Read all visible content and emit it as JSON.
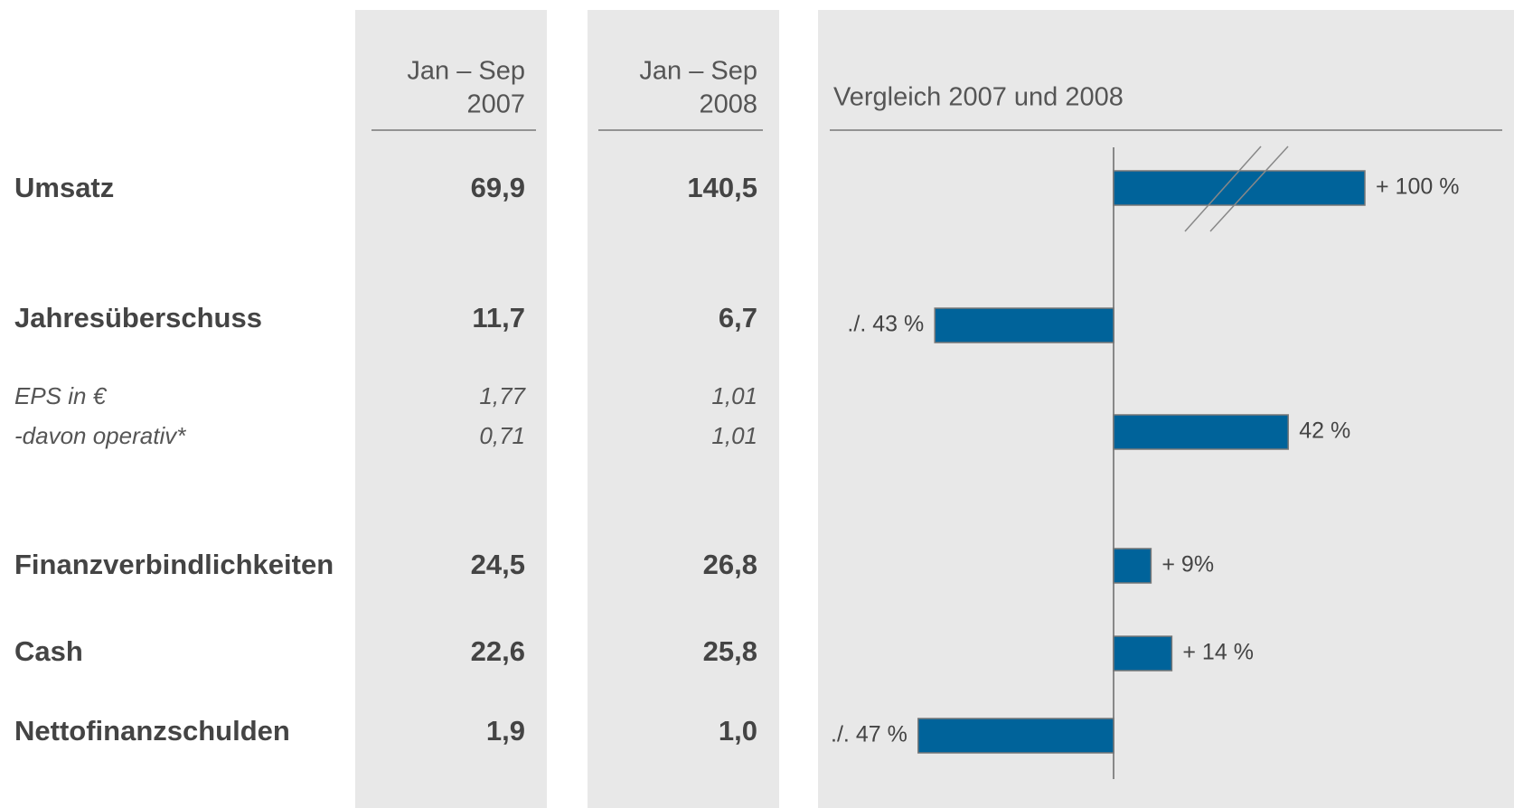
{
  "header": {
    "columns": [
      {
        "line1": "Jan – Sep",
        "line2": "2007"
      },
      {
        "line1": "Jan – Sep",
        "line2": "2008"
      }
    ],
    "chart_title": "Vergleich 2007 und 2008"
  },
  "rows": [
    {
      "label": "Umsatz",
      "v2007": "69,9",
      "v2008": "140,5",
      "emphasis": "bold"
    },
    {
      "label": "Jahresüberschuss",
      "v2007": "11,7",
      "v2008": "6,7",
      "emphasis": "bold"
    },
    {
      "label": "EPS in €",
      "v2007": "1,77",
      "v2008": "1,01",
      "emphasis": "italic"
    },
    {
      "label": "-davon operativ*",
      "v2007": "0,71",
      "v2008": "1,01",
      "emphasis": "italic"
    },
    {
      "label": "Finanzverbindlichkeiten",
      "v2007": "24,5",
      "v2008": "26,8",
      "emphasis": "bold"
    },
    {
      "label": "Cash",
      "v2007": "22,6",
      "v2008": "25,8",
      "emphasis": "bold"
    },
    {
      "label": "Nettofinanzschulden",
      "v2007": "1,9",
      "v2008": "1,0",
      "emphasis": "bold"
    }
  ],
  "bars": [
    {
      "value": 100,
      "label": "+ 100 %"
    },
    {
      "value": -43,
      "label": "./. 43 %"
    },
    {
      "value": 42,
      "label": "42 %"
    },
    {
      "value": 9,
      "label": "+ 9%"
    },
    {
      "value": 14,
      "label": "+ 14 %"
    },
    {
      "value": -47,
      "label": "./. 47 %"
    }
  ],
  "bar_color": "#00639a"
}
